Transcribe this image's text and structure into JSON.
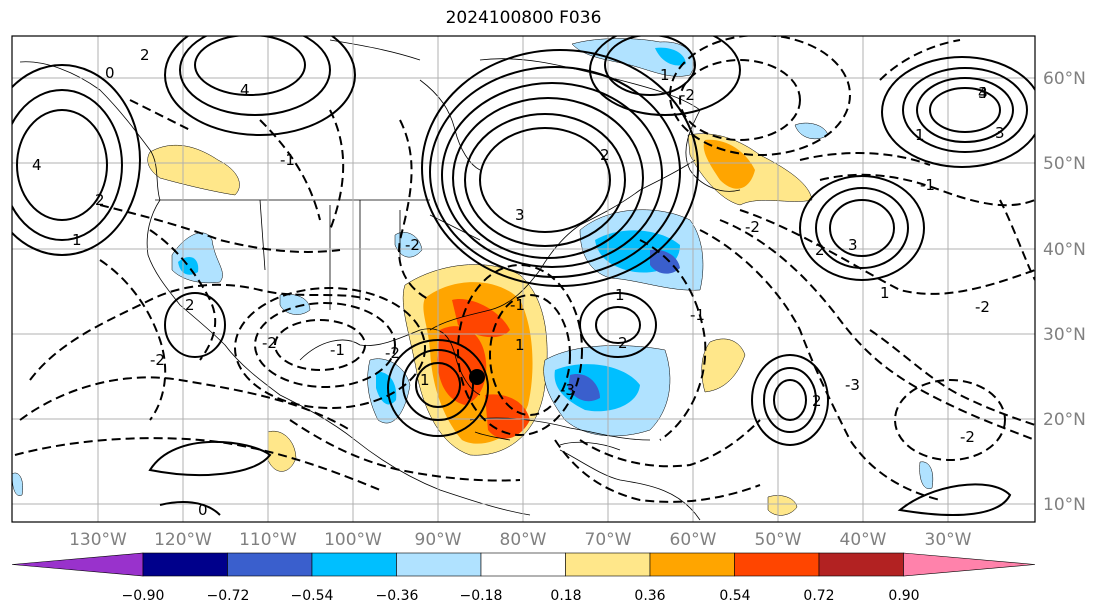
{
  "title": "2024100800 F036",
  "lon_labels": [
    "130°W",
    "120°W",
    "110°W",
    "100°W",
    "90°W",
    "80°W",
    "70°W",
    "60°W",
    "50°W",
    "40°W",
    "30°W"
  ],
  "lat_labels": [
    "60°N",
    "50°N",
    "40°N",
    "30°N",
    "20°N",
    "10°N"
  ],
  "colorbar": {
    "ticks": [
      "−0.90",
      "−0.72",
      "−0.54",
      "−0.36",
      "−0.18",
      "0.18",
      "0.36",
      "0.54",
      "0.72",
      "0.90"
    ],
    "colors": [
      "#9932cc",
      "#00008b",
      "#3a5fcd",
      "#00bfff",
      "#b0e2ff",
      "#ffffff",
      "#ffe78a",
      "#ffa500",
      "#ff4500",
      "#b22222",
      "#ff82ab"
    ]
  },
  "contour_labels": {
    "pos": [
      "2",
      "4",
      "0",
      "2",
      "1",
      "4",
      "3",
      "2",
      "1",
      "2",
      "1",
      "3",
      "3",
      "1",
      "3",
      "2",
      "2",
      "1",
      "0",
      "4",
      "2",
      "1",
      "1"
    ],
    "neg": [
      "-2",
      "-1",
      "-1",
      "-2",
      "-3",
      "-2",
      "-1",
      "-2",
      "-1",
      "-2",
      "-1",
      "-2",
      "-2",
      "-3",
      "-2"
    ]
  },
  "marker": "storm-center"
}
